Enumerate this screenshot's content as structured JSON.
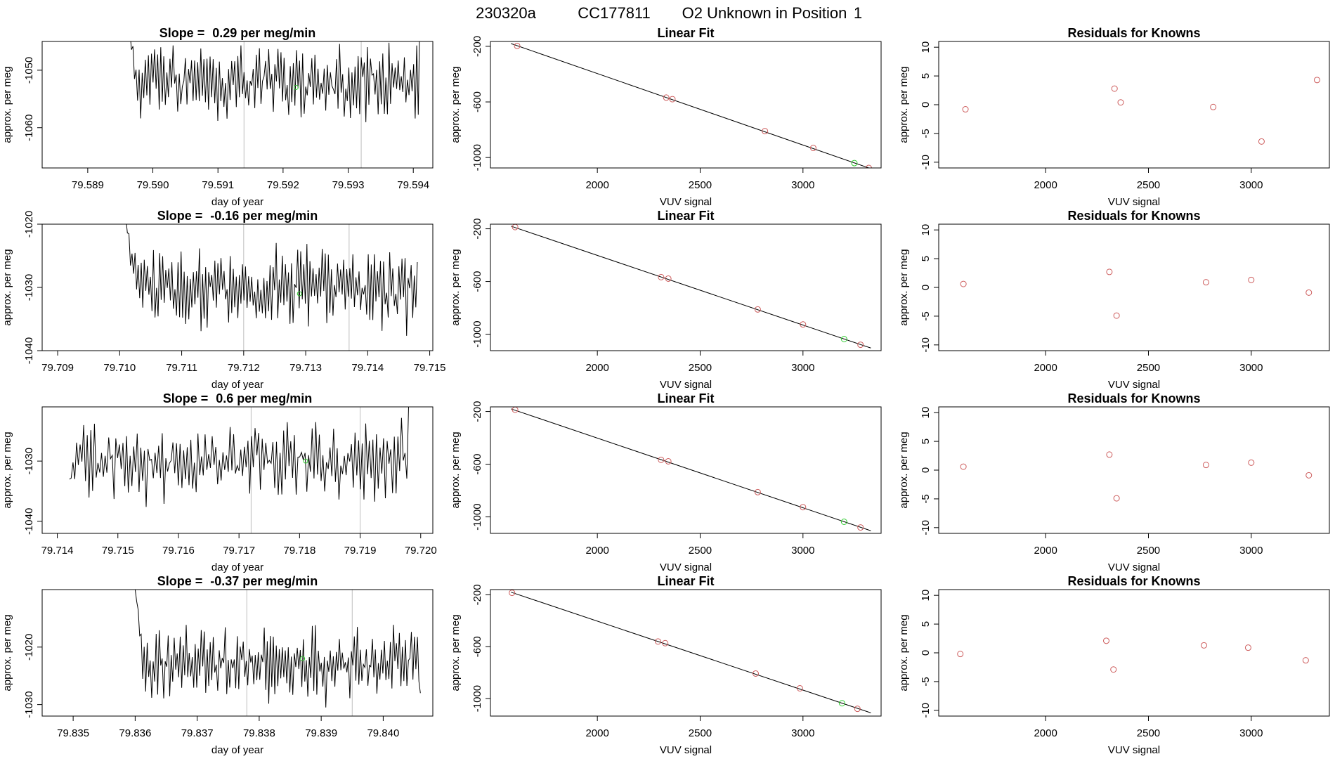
{
  "figure": {
    "run_id": "230320a",
    "cylinder": "CC177811",
    "description": "O2 Unknown in Position",
    "position": "1"
  },
  "colors": {
    "line": "#000000",
    "known_marker": "#cd5c5c",
    "unknown_marker": "#33cc33",
    "marker_line": "#bebebe"
  },
  "chart_data": [
    {
      "type": "line",
      "row": 1,
      "title_prefix": "Slope = ",
      "slope": "0.29",
      "title_suffix": " per meg/min",
      "xlabel": "day of year",
      "ylabel": "approx. per meg",
      "xlim": [
        79.5883,
        79.5943
      ],
      "ylim": [
        -1067,
        -1045
      ],
      "xticks": [
        "79.589",
        "79.590",
        "79.591",
        "79.592",
        "79.593",
        "79.594"
      ],
      "yticks": [
        "-1050",
        "-1060"
      ],
      "trace": {
        "start": 79.5896,
        "end": 79.5941,
        "center": -1052,
        "amp": 3.5,
        "seed": 11,
        "start_value": -1040,
        "end_value": -1040
      },
      "markers": [
        79.5914,
        79.5932
      ],
      "unknown_point": [
        79.5922,
        -1053
      ]
    },
    {
      "type": "line",
      "row": 2,
      "title_prefix": "Slope = ",
      "slope": "-0.16",
      "title_suffix": " per meg/min",
      "xlabel": "day of year",
      "ylabel": "approx. per meg",
      "xlim": [
        79.70875,
        79.71505
      ],
      "ylim": [
        -1040,
        -1020
      ],
      "xticks": [
        "79.709",
        "79.710",
        "79.711",
        "79.712",
        "79.713",
        "79.714",
        "79.715"
      ],
      "yticks": [
        "-1020",
        "-1030",
        "-1040"
      ],
      "trace": {
        "start": 79.7101,
        "end": 79.7148,
        "center": -1030,
        "amp": 3.5,
        "seed": 23,
        "start_value": -1019,
        "end_value": -1026
      },
      "markers": [
        79.712,
        79.7137
      ],
      "unknown_point": [
        79.7129,
        -1031
      ]
    },
    {
      "type": "line",
      "row": 3,
      "title_prefix": "Slope = ",
      "slope": "0.6",
      "title_suffix": " per meg/min",
      "xlabel": "day of year",
      "ylabel": "approx. per meg",
      "xlim": [
        79.71375,
        79.7202
      ],
      "ylim": [
        -1042,
        -1021
      ],
      "xticks": [
        "79.714",
        "79.715",
        "79.716",
        "79.717",
        "79.718",
        "79.719",
        "79.720"
      ],
      "yticks": [
        "-1030",
        "-1040"
      ],
      "trace": {
        "start": 79.7142,
        "end": 79.7198,
        "center": -1030,
        "amp": 3.5,
        "seed": 37,
        "start_value": -1033,
        "end_value": -1021
      },
      "markers": [
        79.7172,
        79.719
      ],
      "unknown_point": [
        79.7181,
        -1030
      ]
    },
    {
      "type": "line",
      "row": 4,
      "title_prefix": "Slope = ",
      "slope": "-0.37",
      "title_suffix": " per meg/min",
      "xlabel": "day of year",
      "ylabel": "approx. per meg",
      "xlim": [
        79.8345,
        79.8408
      ],
      "ylim": [
        -1032,
        -1010
      ],
      "xticks": [
        "79.835",
        "79.836",
        "79.837",
        "79.838",
        "79.839",
        "79.840"
      ],
      "yticks": [
        "-1020",
        "-1030"
      ],
      "trace": {
        "start": 79.836,
        "end": 79.8406,
        "center": -1023,
        "amp": 3.5,
        "seed": 53,
        "start_value": -1010,
        "end_value": -1028
      },
      "markers": [
        79.8378,
        79.8395
      ],
      "unknown_point": [
        79.8387,
        -1022
      ]
    },
    {
      "type": "scatter",
      "row": 1,
      "title": "Linear Fit",
      "xlabel": "VUV signal",
      "ylabel": "approx. per meg",
      "xlim": [
        1480,
        3380
      ],
      "ylim": [
        -1075,
        -165
      ],
      "xticks": [
        "2000",
        "2500",
        "3000"
      ],
      "yticks": [
        "-200",
        "-600",
        "-1000"
      ],
      "fit_line": [
        [
          1580,
          -180
        ],
        [
          3340,
          -1085
        ]
      ],
      "known": [
        [
          1610,
          -197
        ],
        [
          2335,
          -569
        ],
        [
          2365,
          -580
        ],
        [
          2815,
          -810
        ],
        [
          3050,
          -931
        ],
        [
          3320,
          -1075
        ]
      ],
      "unknown": [
        [
          3250,
          -1040
        ]
      ]
    },
    {
      "type": "scatter",
      "row": 2,
      "title": "Linear Fit",
      "xlabel": "VUV signal",
      "ylabel": "approx. per meg",
      "xlim": [
        1480,
        3380
      ],
      "ylim": [
        -1125,
        -165
      ],
      "xticks": [
        "2000",
        "2500",
        "3000"
      ],
      "yticks": [
        "-200",
        "-600",
        "-1000"
      ],
      "fit_line": [
        [
          1580,
          -180
        ],
        [
          3330,
          -1105
        ]
      ],
      "known": [
        [
          1600,
          -187
        ],
        [
          2310,
          -567
        ],
        [
          2345,
          -578
        ],
        [
          2780,
          -812
        ],
        [
          3000,
          -926
        ],
        [
          3280,
          -1080
        ]
      ],
      "unknown": [
        [
          3200,
          -1037
        ]
      ]
    },
    {
      "type": "scatter",
      "row": 3,
      "title": "Linear Fit",
      "xlabel": "VUV signal",
      "ylabel": "approx. per meg",
      "xlim": [
        1480,
        3380
      ],
      "ylim": [
        -1125,
        -165
      ],
      "xticks": [
        "2000",
        "2500",
        "3000"
      ],
      "yticks": [
        "-200",
        "-600",
        "-1000"
      ],
      "fit_line": [
        [
          1580,
          -180
        ],
        [
          3330,
          -1105
        ]
      ],
      "known": [
        [
          1600,
          -187
        ],
        [
          2310,
          -567
        ],
        [
          2345,
          -578
        ],
        [
          2780,
          -812
        ],
        [
          3000,
          -926
        ],
        [
          3280,
          -1080
        ]
      ],
      "unknown": [
        [
          3200,
          -1037
        ]
      ]
    },
    {
      "type": "scatter",
      "row": 4,
      "title": "Linear Fit",
      "xlabel": "VUV signal",
      "ylabel": "approx. per meg",
      "xlim": [
        1480,
        3380
      ],
      "ylim": [
        -1135,
        -160
      ],
      "xticks": [
        "2000",
        "2500",
        "3000"
      ],
      "yticks": [
        "-200",
        "-600",
        "-1000"
      ],
      "fit_line": [
        [
          1580,
          -180
        ],
        [
          3330,
          -1110
        ]
      ],
      "known": [
        [
          1585,
          -185
        ],
        [
          2295,
          -560
        ],
        [
          2330,
          -573
        ],
        [
          2770,
          -807
        ],
        [
          2985,
          -921
        ],
        [
          3265,
          -1079
        ]
      ],
      "unknown": [
        [
          3190,
          -1036
        ]
      ]
    },
    {
      "type": "scatter",
      "row": 1,
      "title": "Residuals for Knowns",
      "xlabel": "VUV signal",
      "ylabel": "approx. per meg",
      "xlim": [
        1480,
        3380
      ],
      "ylim": [
        -11,
        11
      ],
      "xticks": [
        "2000",
        "2500",
        "3000"
      ],
      "yticks": [
        "10",
        "5",
        "0",
        "-5",
        "-10"
      ],
      "known": [
        [
          1610,
          -0.8
        ],
        [
          2335,
          2.8
        ],
        [
          2365,
          0.4
        ],
        [
          2815,
          -0.4
        ],
        [
          3050,
          -6.4
        ],
        [
          3320,
          4.3
        ]
      ]
    },
    {
      "type": "scatter",
      "row": 2,
      "title": "Residuals for Knowns",
      "xlabel": "VUV signal",
      "ylabel": "approx. per meg",
      "xlim": [
        1480,
        3380
      ],
      "ylim": [
        -11,
        11
      ],
      "xticks": [
        "2000",
        "2500",
        "3000"
      ],
      "yticks": [
        "10",
        "5",
        "0",
        "-5",
        "-10"
      ],
      "known": [
        [
          1600,
          0.6
        ],
        [
          2310,
          2.7
        ],
        [
          2345,
          -4.9
        ],
        [
          2780,
          0.9
        ],
        [
          3000,
          1.3
        ],
        [
          3280,
          -0.9
        ]
      ]
    },
    {
      "type": "scatter",
      "row": 3,
      "title": "Residuals for Knowns",
      "xlabel": "VUV signal",
      "ylabel": "approx. per meg",
      "xlim": [
        1480,
        3380
      ],
      "ylim": [
        -11,
        11
      ],
      "xticks": [
        "2000",
        "2500",
        "3000"
      ],
      "yticks": [
        "10",
        "5",
        "0",
        "-5",
        "-10"
      ],
      "known": [
        [
          1600,
          0.6
        ],
        [
          2310,
          2.7
        ],
        [
          2345,
          -4.9
        ],
        [
          2780,
          0.9
        ],
        [
          3000,
          1.3
        ],
        [
          3280,
          -0.9
        ]
      ]
    },
    {
      "type": "scatter",
      "row": 4,
      "title": "Residuals for Knowns",
      "xlabel": "VUV signal",
      "ylabel": "approx. per meg",
      "xlim": [
        1480,
        3380
      ],
      "ylim": [
        -11,
        11
      ],
      "xticks": [
        "2000",
        "2500",
        "3000"
      ],
      "yticks": [
        "10",
        "5",
        "0",
        "-5",
        "-10"
      ],
      "known": [
        [
          1585,
          -0.2
        ],
        [
          2295,
          2.1
        ],
        [
          2330,
          -2.9
        ],
        [
          2770,
          1.3
        ],
        [
          2985,
          0.9
        ],
        [
          3265,
          -1.3
        ]
      ]
    }
  ]
}
